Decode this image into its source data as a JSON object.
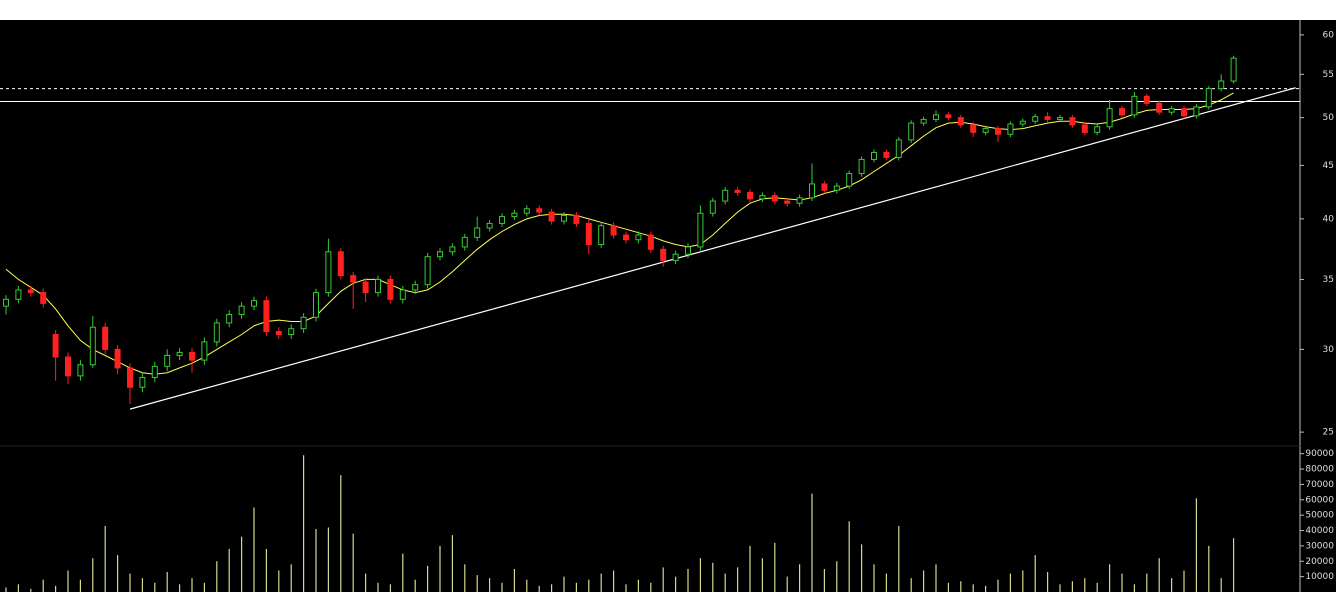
{
  "chart_data": {
    "type": "candlestick",
    "yscale": "log",
    "ylim": [
      24.3,
      62
    ],
    "yticks": [
      25,
      30,
      35,
      40,
      45,
      50,
      55,
      60
    ],
    "up_color": "#33cc33",
    "down_color": "#ff2020",
    "open": [
      33.0,
      33.5,
      34.2,
      34.0,
      31.0,
      29.5,
      28.3,
      29.0,
      31.5,
      30.0,
      28.8,
      27.6,
      28.2,
      28.9,
      29.6,
      29.8,
      29.3,
      30.5,
      31.8,
      32.4,
      33.0,
      33.4,
      31.2,
      31.0,
      31.4,
      32.2,
      34.0,
      37.2,
      35.3,
      34.8,
      34.0,
      35.0,
      33.5,
      34.2,
      34.6,
      36.8,
      37.2,
      37.6,
      38.4,
      39.2,
      39.6,
      40.2,
      40.5,
      40.9,
      40.6,
      39.8,
      40.3,
      39.6,
      37.8,
      39.4,
      38.6,
      38.2,
      38.6,
      37.4,
      36.5,
      37.0,
      37.6,
      40.5,
      41.6,
      42.6,
      42.4,
      41.8,
      42.1,
      41.6,
      41.4,
      41.9,
      43.2,
      42.6,
      43.0,
      44.2,
      45.6,
      46.3,
      45.8,
      47.6,
      49.4,
      49.8,
      50.3,
      50.0,
      49.2,
      48.4,
      48.8,
      48.2,
      49.3,
      49.6,
      50.1,
      49.8,
      50.0,
      49.2,
      48.4,
      49.0,
      51.0,
      50.3,
      52.4,
      51.6,
      50.6,
      51.0,
      50.2,
      51.2,
      53.3,
      54.2
    ],
    "high": [
      33.8,
      34.5,
      34.5,
      34.3,
      31.3,
      29.8,
      29.3,
      32.3,
      31.8,
      30.3,
      29.1,
      28.5,
      29.2,
      30.0,
      30.1,
      30.1,
      30.8,
      32.1,
      32.7,
      33.3,
      33.7,
      33.7,
      31.5,
      31.7,
      32.5,
      34.3,
      38.3,
      37.5,
      35.6,
      35.1,
      35.3,
      35.3,
      34.5,
      34.9,
      37.1,
      37.5,
      37.9,
      38.7,
      40.2,
      39.9,
      40.5,
      40.8,
      41.2,
      41.2,
      40.9,
      40.6,
      40.6,
      39.9,
      39.7,
      39.7,
      38.9,
      38.9,
      38.9,
      37.7,
      37.3,
      37.9,
      41.2,
      41.9,
      42.9,
      42.9,
      42.7,
      42.4,
      42.4,
      41.9,
      42.2,
      45.2,
      43.5,
      43.3,
      44.5,
      45.9,
      46.6,
      46.6,
      47.9,
      49.7,
      50.1,
      50.8,
      50.6,
      50.3,
      49.5,
      49.1,
      49.1,
      49.6,
      49.9,
      50.4,
      50.6,
      50.3,
      50.3,
      49.5,
      49.3,
      52.0,
      51.3,
      52.9,
      52.7,
      51.9,
      51.3,
      51.3,
      51.5,
      53.6,
      55.0,
      57.3
    ],
    "low": [
      32.4,
      33.2,
      33.7,
      32.9,
      28.0,
      27.8,
      28.0,
      28.8,
      29.7,
      28.4,
      26.6,
      27.3,
      27.9,
      28.6,
      29.3,
      28.5,
      29.0,
      30.2,
      31.5,
      32.1,
      32.7,
      30.9,
      30.7,
      30.7,
      31.1,
      31.9,
      33.7,
      35.0,
      32.8,
      33.3,
      33.7,
      33.2,
      33.2,
      33.9,
      34.3,
      36.5,
      36.9,
      37.3,
      38.1,
      38.9,
      39.3,
      39.9,
      40.2,
      40.3,
      39.5,
      39.5,
      39.3,
      37.0,
      37.5,
      38.3,
      37.9,
      37.9,
      37.1,
      36.0,
      36.2,
      36.7,
      37.3,
      40.2,
      41.3,
      42.1,
      41.5,
      41.5,
      41.3,
      41.1,
      41.1,
      41.6,
      42.3,
      42.3,
      42.7,
      43.9,
      45.3,
      45.5,
      45.5,
      47.3,
      49.1,
      49.5,
      49.7,
      48.9,
      47.9,
      48.1,
      47.4,
      47.9,
      49.0,
      49.3,
      49.5,
      49.5,
      48.9,
      48.1,
      48.1,
      48.7,
      50.0,
      50.0,
      51.3,
      50.3,
      50.3,
      49.9,
      49.9,
      50.9,
      53.0,
      53.9
    ],
    "close": [
      33.5,
      34.2,
      34.0,
      33.2,
      29.5,
      28.3,
      29.0,
      31.5,
      30.0,
      28.8,
      27.6,
      28.2,
      28.9,
      29.6,
      29.8,
      29.3,
      30.5,
      31.8,
      32.4,
      33.0,
      33.4,
      31.2,
      31.0,
      31.4,
      32.2,
      34.0,
      37.2,
      35.3,
      34.8,
      34.0,
      35.0,
      33.5,
      34.2,
      34.6,
      36.8,
      37.2,
      37.6,
      38.4,
      39.2,
      39.6,
      40.2,
      40.5,
      40.9,
      40.6,
      39.8,
      40.3,
      39.6,
      37.8,
      39.4,
      38.6,
      38.2,
      38.6,
      37.4,
      36.5,
      37.0,
      37.6,
      40.5,
      41.6,
      42.6,
      42.4,
      41.8,
      42.1,
      41.6,
      41.4,
      41.9,
      43.2,
      42.6,
      43.0,
      44.2,
      45.6,
      46.3,
      45.8,
      47.6,
      49.4,
      49.8,
      50.3,
      50.0,
      49.2,
      48.4,
      48.8,
      48.2,
      49.3,
      49.6,
      50.1,
      49.8,
      50.0,
      49.2,
      48.4,
      49.0,
      51.0,
      50.3,
      52.4,
      51.6,
      50.6,
      51.0,
      50.2,
      51.2,
      53.3,
      54.2,
      57.0
    ],
    "moving_average": {
      "color": "#ffff55",
      "values": [
        35.8,
        35.0,
        34.4,
        33.8,
        32.8,
        31.6,
        30.6,
        30.0,
        29.6,
        29.2,
        28.8,
        28.5,
        28.4,
        28.5,
        28.8,
        29.1,
        29.5,
        30.0,
        30.5,
        31.0,
        31.6,
        31.9,
        32.0,
        31.9,
        31.9,
        32.3,
        33.2,
        34.1,
        34.7,
        35.0,
        35.0,
        34.6,
        34.2,
        34.0,
        34.2,
        34.8,
        35.6,
        36.5,
        37.4,
        38.2,
        38.9,
        39.5,
        40.0,
        40.3,
        40.4,
        40.4,
        40.3,
        40.0,
        39.7,
        39.4,
        39.1,
        38.8,
        38.5,
        38.1,
        37.8,
        37.6,
        37.8,
        38.6,
        39.6,
        40.6,
        41.4,
        41.8,
        41.9,
        41.8,
        41.7,
        41.9,
        42.3,
        42.6,
        43.0,
        43.6,
        44.4,
        45.2,
        46.0,
        47.0,
        48.0,
        48.9,
        49.4,
        49.5,
        49.3,
        49.0,
        48.8,
        48.7,
        48.8,
        49.1,
        49.4,
        49.6,
        49.6,
        49.4,
        49.3,
        49.5,
        49.9,
        50.4,
        50.8,
        50.9,
        50.9,
        50.9,
        51.0,
        51.4,
        52.0,
        52.8
      ]
    },
    "trendline": {
      "color": "#ffffff",
      "x": [
        10,
        104
      ],
      "y": [
        26.3,
        53.4
      ]
    },
    "levels": [
      {
        "value": 53.3,
        "style": "dashed"
      },
      {
        "value": 51.8,
        "style": "solid"
      }
    ],
    "volume": {
      "color": "#d8d890",
      "ylim": [
        0,
        95000
      ],
      "yticks": [
        10000,
        20000,
        30000,
        40000,
        50000,
        60000,
        70000,
        80000,
        90000
      ],
      "values": [
        3000,
        5000,
        2000,
        8000,
        4000,
        14000,
        8000,
        22000,
        43000,
        24000,
        12000,
        9000,
        6000,
        13000,
        5000,
        9000,
        6000,
        20000,
        28000,
        36000,
        55000,
        28000,
        14000,
        18000,
        89000,
        41000,
        42000,
        76000,
        38000,
        12000,
        6000,
        5000,
        25000,
        8000,
        17000,
        30000,
        37000,
        18000,
        11000,
        9000,
        6000,
        15000,
        8000,
        4000,
        5000,
        10000,
        6000,
        8000,
        12000,
        14000,
        5000,
        8000,
        6000,
        16000,
        10000,
        15000,
        22000,
        19000,
        12000,
        16000,
        30000,
        22000,
        32000,
        10000,
        18000,
        64000,
        15000,
        20000,
        46000,
        31000,
        18000,
        12000,
        43000,
        9000,
        14000,
        18000,
        6000,
        7000,
        5000,
        4000,
        8000,
        12000,
        14000,
        24000,
        13000,
        5000,
        7000,
        9000,
        6000,
        18000,
        12000,
        5000,
        12000,
        22000,
        9000,
        14000,
        61000,
        30000,
        9000,
        35000
      ]
    }
  }
}
